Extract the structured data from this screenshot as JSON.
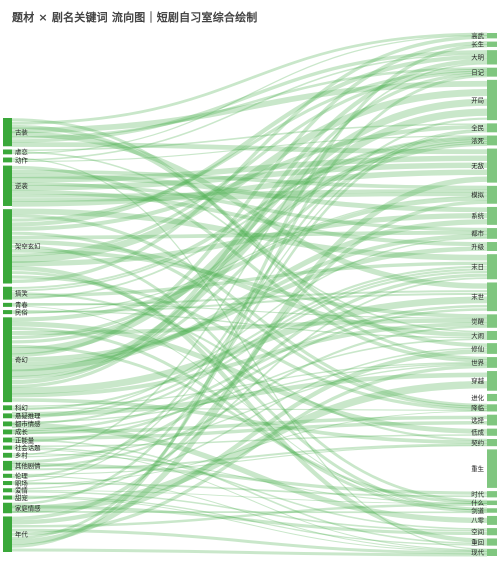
{
  "title": "题材 × 剧名关键词 流向图｜短剧自习室综合绘制",
  "colors": {
    "node": "#3aa83a",
    "link": "#4caf50",
    "link_opacity": 0.3,
    "label": "#222222"
  },
  "left_nodes": [
    {
      "name": "古装",
      "size": 3.5
    },
    {
      "name": "虐恋",
      "size": 0.6
    },
    {
      "name": "动作",
      "size": 0.6
    },
    {
      "name": "逆袭",
      "size": 5.0
    },
    {
      "name": "架空玄幻",
      "size": 9.2
    },
    {
      "name": "搞笑",
      "size": 1.6
    },
    {
      "name": "青春",
      "size": 0.5
    },
    {
      "name": "民俗",
      "size": 0.5
    },
    {
      "name": "奇幻",
      "size": 10.5
    },
    {
      "name": "科幻",
      "size": 0.6
    },
    {
      "name": "悬疑推理",
      "size": 0.6
    },
    {
      "name": "都市情感",
      "size": 0.6
    },
    {
      "name": "成长",
      "size": 0.6
    },
    {
      "name": "正能量",
      "size": 0.6
    },
    {
      "name": "社会话题",
      "size": 0.5
    },
    {
      "name": "乡村",
      "size": 0.6
    },
    {
      "name": "其他剧情",
      "size": 1.2
    },
    {
      "name": "伦理",
      "size": 0.5
    },
    {
      "name": "职场",
      "size": 0.5
    },
    {
      "name": "爱情",
      "size": 0.5
    },
    {
      "name": "甜宠",
      "size": 0.5
    },
    {
      "name": "家庭情感",
      "size": 1.3
    },
    {
      "name": "年代",
      "size": 4.4
    }
  ],
  "right_nodes": [
    {
      "name": "高武",
      "size": 0.6
    },
    {
      "name": "长生",
      "size": 0.6
    },
    {
      "name": "大明",
      "size": 1.6
    },
    {
      "name": "日记",
      "size": 1.0
    },
    {
      "name": "开局",
      "size": 4.5
    },
    {
      "name": "全民",
      "size": 1.0
    },
    {
      "name": "浓死",
      "size": 1.1
    },
    {
      "name": "无敌",
      "size": 3.8
    },
    {
      "name": "模拟",
      "size": 2.0
    },
    {
      "name": "系统",
      "size": 2.0
    },
    {
      "name": "都市",
      "size": 1.2
    },
    {
      "name": "升级",
      "size": 1.0
    },
    {
      "name": "末日",
      "size": 2.8
    },
    {
      "name": "末世",
      "size": 3.2
    },
    {
      "name": "觉醒",
      "size": 1.5
    },
    {
      "name": "大闹",
      "size": 1.0
    },
    {
      "name": "修仙",
      "size": 1.2
    },
    {
      "name": "世界",
      "size": 1.2
    },
    {
      "name": "穿越",
      "size": 2.2
    },
    {
      "name": "进化",
      "size": 0.8
    },
    {
      "name": "降临",
      "size": 0.8
    },
    {
      "name": "选择",
      "size": 1.2
    },
    {
      "name": "低成",
      "size": 0.8
    },
    {
      "name": "契约",
      "size": 0.8
    },
    {
      "name": "重生",
      "size": 4.3
    },
    {
      "name": "时代",
      "size": 0.7
    },
    {
      "name": "什么",
      "size": 0.5
    },
    {
      "name": "剑道",
      "size": 0.5
    },
    {
      "name": "八零",
      "size": 1.0
    },
    {
      "name": "空间",
      "size": 0.8
    },
    {
      "name": "重回",
      "size": 0.8
    },
    {
      "name": "现代",
      "size": 0.8
    }
  ]
}
